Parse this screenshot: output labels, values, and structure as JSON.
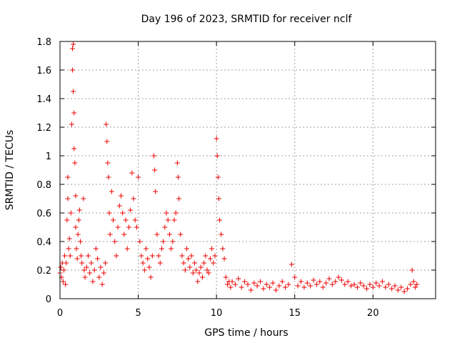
{
  "chart_data": {
    "type": "scatter",
    "title": "Day 196 of 2023, SRMTID for receiver nclf",
    "xlabel": "GPS time / hours",
    "ylabel": "SRMTID / TECUs",
    "xlim": [
      0,
      24
    ],
    "ylim": [
      0,
      1.8
    ],
    "xticks": [
      0,
      5,
      10,
      15,
      20
    ],
    "xtick_labels": [
      "0",
      "5",
      "10",
      "15",
      "20"
    ],
    "yticks": [
      0,
      0.2,
      0.4,
      0.6,
      0.8,
      1.0,
      1.2,
      1.4,
      1.6,
      1.8
    ],
    "ytick_labels": [
      "0",
      "0.2",
      "0.4",
      "0.6",
      "0.8",
      "1",
      "1.2",
      "1.4",
      "1.6",
      "1.8"
    ],
    "grid": true,
    "marker": "+",
    "color": "#ee0000",
    "series": [
      {
        "name": "SRMTID",
        "points": [
          [
            0.0,
            0.18
          ],
          [
            0.05,
            0.22
          ],
          [
            0.1,
            0.15
          ],
          [
            0.15,
            0.25
          ],
          [
            0.2,
            0.12
          ],
          [
            0.25,
            0.2
          ],
          [
            0.3,
            0.3
          ],
          [
            0.35,
            0.1
          ],
          [
            0.4,
            0.25
          ],
          [
            0.45,
            0.55
          ],
          [
            0.5,
            0.7
          ],
          [
            0.5,
            0.85
          ],
          [
            0.55,
            0.35
          ],
          [
            0.6,
            0.42
          ],
          [
            0.65,
            0.3
          ],
          [
            0.7,
            0.6
          ],
          [
            0.75,
            1.22
          ],
          [
            0.8,
            1.6
          ],
          [
            0.8,
            1.75
          ],
          [
            0.85,
            1.78
          ],
          [
            0.85,
            1.45
          ],
          [
            0.9,
            1.3
          ],
          [
            0.9,
            1.05
          ],
          [
            0.95,
            0.95
          ],
          [
            1.0,
            0.72
          ],
          [
            1.0,
            0.5
          ],
          [
            1.05,
            0.35
          ],
          [
            1.1,
            0.28
          ],
          [
            1.15,
            0.45
          ],
          [
            1.2,
            0.55
          ],
          [
            1.25,
            0.62
          ],
          [
            1.3,
            0.4
          ],
          [
            1.35,
            0.3
          ],
          [
            1.4,
            0.25
          ],
          [
            1.5,
            0.7
          ],
          [
            1.55,
            0.2
          ],
          [
            1.6,
            0.15
          ],
          [
            1.7,
            0.22
          ],
          [
            1.8,
            0.3
          ],
          [
            1.9,
            0.18
          ],
          [
            2.0,
            0.25
          ],
          [
            2.1,
            0.12
          ],
          [
            2.2,
            0.2
          ],
          [
            2.3,
            0.35
          ],
          [
            2.4,
            0.28
          ],
          [
            2.5,
            0.15
          ],
          [
            2.6,
            0.22
          ],
          [
            2.7,
            0.1
          ],
          [
            2.8,
            0.18
          ],
          [
            2.9,
            0.25
          ],
          [
            2.95,
            1.22
          ],
          [
            3.0,
            1.1
          ],
          [
            3.05,
            0.95
          ],
          [
            3.1,
            0.85
          ],
          [
            3.15,
            0.6
          ],
          [
            3.2,
            0.45
          ],
          [
            3.3,
            0.75
          ],
          [
            3.4,
            0.55
          ],
          [
            3.5,
            0.4
          ],
          [
            3.6,
            0.3
          ],
          [
            3.7,
            0.5
          ],
          [
            3.8,
            0.65
          ],
          [
            3.9,
            0.72
          ],
          [
            4.0,
            0.6
          ],
          [
            4.1,
            0.45
          ],
          [
            4.2,
            0.55
          ],
          [
            4.3,
            0.35
          ],
          [
            4.4,
            0.5
          ],
          [
            4.5,
            0.62
          ],
          [
            4.6,
            0.88
          ],
          [
            4.7,
            0.7
          ],
          [
            4.8,
            0.55
          ],
          [
            4.9,
            0.5
          ],
          [
            5.0,
            0.85
          ],
          [
            5.1,
            0.4
          ],
          [
            5.2,
            0.3
          ],
          [
            5.3,
            0.25
          ],
          [
            5.4,
            0.2
          ],
          [
            5.5,
            0.35
          ],
          [
            5.6,
            0.28
          ],
          [
            5.7,
            0.22
          ],
          [
            5.8,
            0.15
          ],
          [
            5.9,
            0.3
          ],
          [
            6.0,
            1.0
          ],
          [
            6.05,
            0.9
          ],
          [
            6.1,
            0.75
          ],
          [
            6.2,
            0.45
          ],
          [
            6.3,
            0.3
          ],
          [
            6.4,
            0.25
          ],
          [
            6.5,
            0.35
          ],
          [
            6.6,
            0.4
          ],
          [
            6.7,
            0.5
          ],
          [
            6.8,
            0.6
          ],
          [
            6.9,
            0.55
          ],
          [
            7.0,
            0.45
          ],
          [
            7.1,
            0.35
          ],
          [
            7.2,
            0.4
          ],
          [
            7.3,
            0.55
          ],
          [
            7.4,
            0.6
          ],
          [
            7.5,
            0.95
          ],
          [
            7.55,
            0.85
          ],
          [
            7.6,
            0.7
          ],
          [
            7.7,
            0.45
          ],
          [
            7.8,
            0.3
          ],
          [
            7.9,
            0.25
          ],
          [
            8.0,
            0.2
          ],
          [
            8.1,
            0.35
          ],
          [
            8.2,
            0.28
          ],
          [
            8.3,
            0.22
          ],
          [
            8.4,
            0.3
          ],
          [
            8.5,
            0.18
          ],
          [
            8.6,
            0.25
          ],
          [
            8.7,
            0.2
          ],
          [
            8.8,
            0.12
          ],
          [
            8.9,
            0.18
          ],
          [
            9.0,
            0.22
          ],
          [
            9.1,
            0.15
          ],
          [
            9.2,
            0.25
          ],
          [
            9.3,
            0.3
          ],
          [
            9.4,
            0.2
          ],
          [
            9.5,
            0.18
          ],
          [
            9.6,
            0.28
          ],
          [
            9.7,
            0.35
          ],
          [
            9.8,
            0.25
          ],
          [
            9.9,
            0.3
          ],
          [
            10.0,
            1.12
          ],
          [
            10.05,
            1.0
          ],
          [
            10.1,
            0.85
          ],
          [
            10.15,
            0.7
          ],
          [
            10.2,
            0.55
          ],
          [
            10.3,
            0.45
          ],
          [
            10.4,
            0.35
          ],
          [
            10.5,
            0.28
          ],
          [
            10.6,
            0.15
          ],
          [
            10.7,
            0.1
          ],
          [
            10.8,
            0.12
          ],
          [
            10.9,
            0.08
          ],
          [
            11.0,
            0.12
          ],
          [
            11.2,
            0.1
          ],
          [
            11.4,
            0.14
          ],
          [
            11.6,
            0.08
          ],
          [
            11.8,
            0.12
          ],
          [
            12.0,
            0.1
          ],
          [
            12.2,
            0.06
          ],
          [
            12.4,
            0.11
          ],
          [
            12.6,
            0.09
          ],
          [
            12.8,
            0.12
          ],
          [
            13.0,
            0.07
          ],
          [
            13.2,
            0.1
          ],
          [
            13.4,
            0.08
          ],
          [
            13.6,
            0.11
          ],
          [
            13.8,
            0.06
          ],
          [
            14.0,
            0.09
          ],
          [
            14.2,
            0.12
          ],
          [
            14.4,
            0.08
          ],
          [
            14.6,
            0.1
          ],
          [
            14.8,
            0.24
          ],
          [
            15.0,
            0.15
          ],
          [
            15.2,
            0.09
          ],
          [
            15.4,
            0.12
          ],
          [
            15.6,
            0.08
          ],
          [
            15.8,
            0.11
          ],
          [
            16.0,
            0.09
          ],
          [
            16.2,
            0.13
          ],
          [
            16.4,
            0.1
          ],
          [
            16.6,
            0.12
          ],
          [
            16.8,
            0.08
          ],
          [
            17.0,
            0.11
          ],
          [
            17.2,
            0.14
          ],
          [
            17.4,
            0.1
          ],
          [
            17.6,
            0.12
          ],
          [
            17.8,
            0.15
          ],
          [
            18.0,
            0.13
          ],
          [
            18.2,
            0.1
          ],
          [
            18.4,
            0.12
          ],
          [
            18.6,
            0.09
          ],
          [
            18.8,
            0.1
          ],
          [
            19.0,
            0.08
          ],
          [
            19.2,
            0.11
          ],
          [
            19.4,
            0.09
          ],
          [
            19.6,
            0.07
          ],
          [
            19.8,
            0.1
          ],
          [
            20.0,
            0.08
          ],
          [
            20.2,
            0.11
          ],
          [
            20.4,
            0.09
          ],
          [
            20.6,
            0.12
          ],
          [
            20.8,
            0.08
          ],
          [
            21.0,
            0.1
          ],
          [
            21.2,
            0.07
          ],
          [
            21.4,
            0.09
          ],
          [
            21.6,
            0.06
          ],
          [
            21.8,
            0.08
          ],
          [
            22.0,
            0.05
          ],
          [
            22.2,
            0.07
          ],
          [
            22.4,
            0.1
          ],
          [
            22.5,
            0.2
          ],
          [
            22.6,
            0.12
          ],
          [
            22.7,
            0.08
          ],
          [
            22.8,
            0.1
          ]
        ]
      }
    ]
  }
}
